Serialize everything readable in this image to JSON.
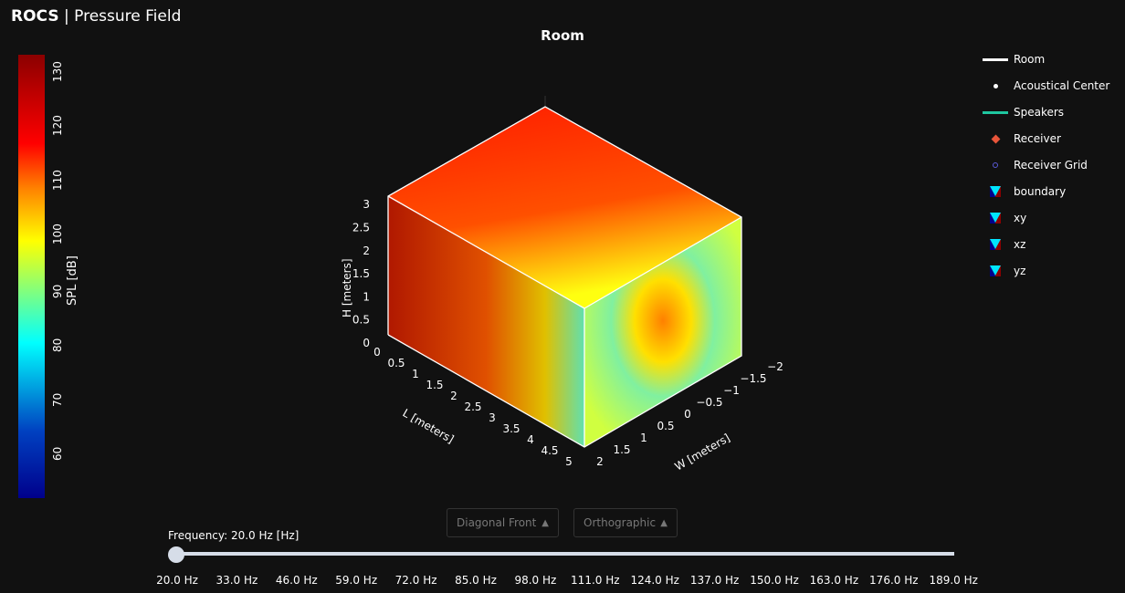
{
  "header": {
    "brand": "ROCS",
    "separator": "|",
    "subtitle": "Pressure Field"
  },
  "plot": {
    "title": "Room",
    "axes": {
      "H": {
        "label": "H [meters]",
        "ticks": [
          "0",
          "0.5",
          "1",
          "1.5",
          "2",
          "2.5",
          "3"
        ]
      },
      "L": {
        "label": "L [meters]",
        "ticks": [
          "0",
          "0.5",
          "1",
          "1.5",
          "2",
          "2.5",
          "3",
          "3.5",
          "4",
          "4.5",
          "5"
        ]
      },
      "W": {
        "label": "W [meters]",
        "ticks": [
          "2",
          "1.5",
          "1",
          "0.5",
          "0",
          "−0.5",
          "−1",
          "−1.5",
          "−2"
        ]
      }
    },
    "colorbar": {
      "title": "SPL [dB]",
      "ticks": [
        "130",
        "120",
        "110",
        "100",
        "90",
        "80",
        "70",
        "60"
      ],
      "range": [
        51.4,
        133.4
      ],
      "colorscale": "jet"
    }
  },
  "legend": [
    {
      "label": "Room",
      "symbol": "line",
      "color": "#ffffff"
    },
    {
      "label": "Acoustical Center",
      "symbol": "dot",
      "color": "#ffffff"
    },
    {
      "label": "Speakers",
      "symbol": "line",
      "color": "#1fc7a0"
    },
    {
      "label": "Receiver",
      "symbol": "diamond",
      "color": "#e8553a"
    },
    {
      "label": "Receiver Grid",
      "symbol": "circle-open",
      "color": "#5a5ad8"
    },
    {
      "label": "boundary",
      "symbol": "triangle",
      "color": "#00e5ff"
    },
    {
      "label": "xy",
      "symbol": "triangle",
      "color": "#00e5ff"
    },
    {
      "label": "xz",
      "symbol": "triangle",
      "color": "#00e5ff"
    },
    {
      "label": "yz",
      "symbol": "triangle",
      "color": "#00e5ff"
    }
  ],
  "controls": {
    "view": "Diagonal Front",
    "projection": "Orthographic",
    "arrow": "▲"
  },
  "slider": {
    "label": "Frequency: 20.0 Hz [Hz]",
    "value_hz": 20.0,
    "ticks": [
      "20.0 Hz",
      "33.0 Hz",
      "46.0 Hz",
      "59.0 Hz",
      "72.0 Hz",
      "85.0 Hz",
      "98.0 Hz",
      "111.0 Hz",
      "124.0 Hz",
      "137.0 Hz",
      "150.0 Hz",
      "163.0 Hz",
      "176.0 Hz",
      "189.0 Hz"
    ]
  }
}
